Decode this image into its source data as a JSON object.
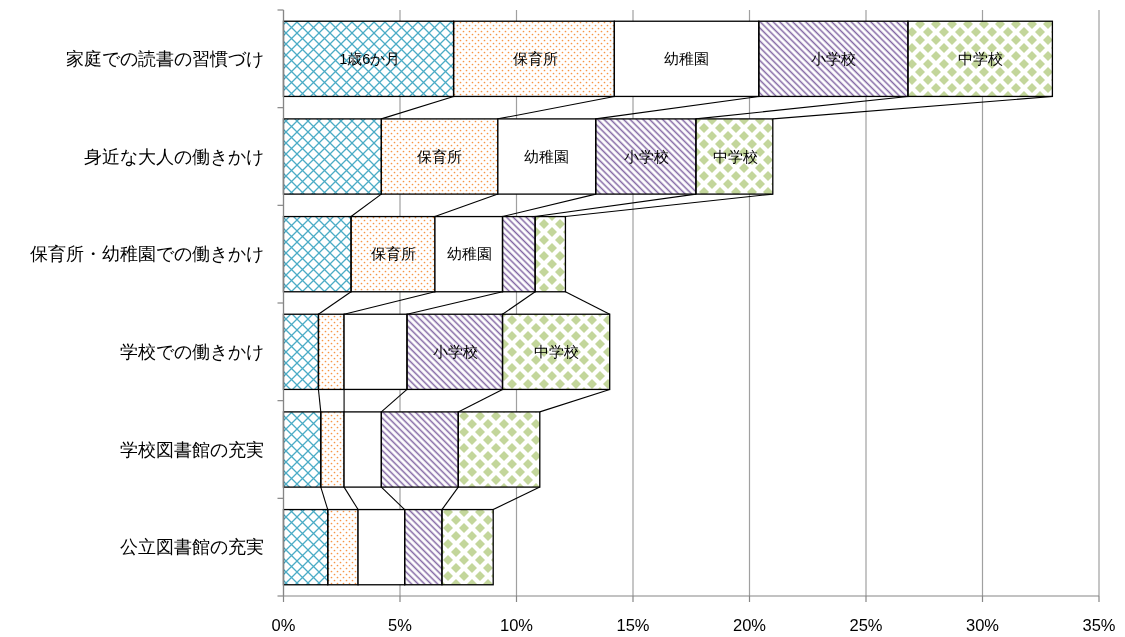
{
  "chart_data": {
    "type": "bar",
    "orientation": "horizontal",
    "stacked": true,
    "categories": [
      "家庭での読書の習慣づけ",
      "身近な大人の働きかけ",
      "保育所・幼稚園での働きかけ",
      "学校での働きかけ",
      "学校図書館の充実",
      "公立図書館の充実"
    ],
    "series": [
      {
        "color": "#4bacc6",
        "values": [
          7.3,
          4.2,
          2.9,
          1.5,
          1.6,
          1.9
        ]
      },
      {
        "color": "#f79646",
        "values": [
          6.9,
          5.0,
          3.6,
          1.1,
          1.0,
          1.3
        ]
      },
      {
        "color": "#ffffff",
        "values": [
          6.2,
          4.2,
          2.9,
          2.7,
          1.6,
          2.0
        ]
      },
      {
        "color": "#8064a2",
        "values": [
          6.4,
          4.3,
          1.4,
          4.1,
          3.3,
          1.6
        ]
      },
      {
        "color": "#9bbb59",
        "values": [
          6.2,
          3.3,
          1.3,
          4.6,
          3.5,
          2.2
        ]
      }
    ],
    "annotations": [
      {
        "text": "1歳6か月",
        "x": 3.7,
        "y": "家庭での読書の習慣づけ"
      },
      {
        "text": "保育所",
        "x": 10.8,
        "y": "家庭での読書の習慣づけ"
      },
      {
        "text": "幼稚園",
        "x": 17.3,
        "y": "家庭での読書の習慣づけ"
      },
      {
        "text": "小学校",
        "x": 23.6,
        "y": "家庭での読書の習慣づけ"
      },
      {
        "text": "中学校",
        "x": 29.9,
        "y": "家庭での読書の習慣づけ"
      },
      {
        "text": "保育所",
        "x": 6.7,
        "y": "身近な大人の働きかけ"
      },
      {
        "text": "幼稚園",
        "x": 11.3,
        "y": "身近な大人の働きかけ"
      },
      {
        "text": "小学校",
        "x": 15.6,
        "y": "身近な大人の働きかけ"
      },
      {
        "text": "中学校",
        "x": 19.4,
        "y": "身近な大人の働きかけ"
      },
      {
        "text": "保育所",
        "x": 4.7,
        "y": "保育所・幼稚園での働きかけ"
      },
      {
        "text": "幼稚園",
        "x": 8.0,
        "y": "保育所・幼稚園での働きかけ"
      },
      {
        "text": "小学校",
        "x": 7.4,
        "y": "学校での働きかけ"
      },
      {
        "text": "中学校",
        "x": 11.7,
        "y": "学校での働きかけ"
      }
    ],
    "xlim": [
      0,
      35
    ],
    "xticks": [
      {
        "value": 0,
        "label": "0%"
      },
      {
        "value": 5,
        "label": "5%"
      },
      {
        "value": 10,
        "label": "10%"
      },
      {
        "value": 15,
        "label": "15%"
      },
      {
        "value": 20,
        "label": "20%"
      },
      {
        "value": 25,
        "label": "25%"
      },
      {
        "value": 30,
        "label": "30%"
      },
      {
        "value": 35,
        "label": "35%"
      }
    ],
    "grid": "x"
  }
}
